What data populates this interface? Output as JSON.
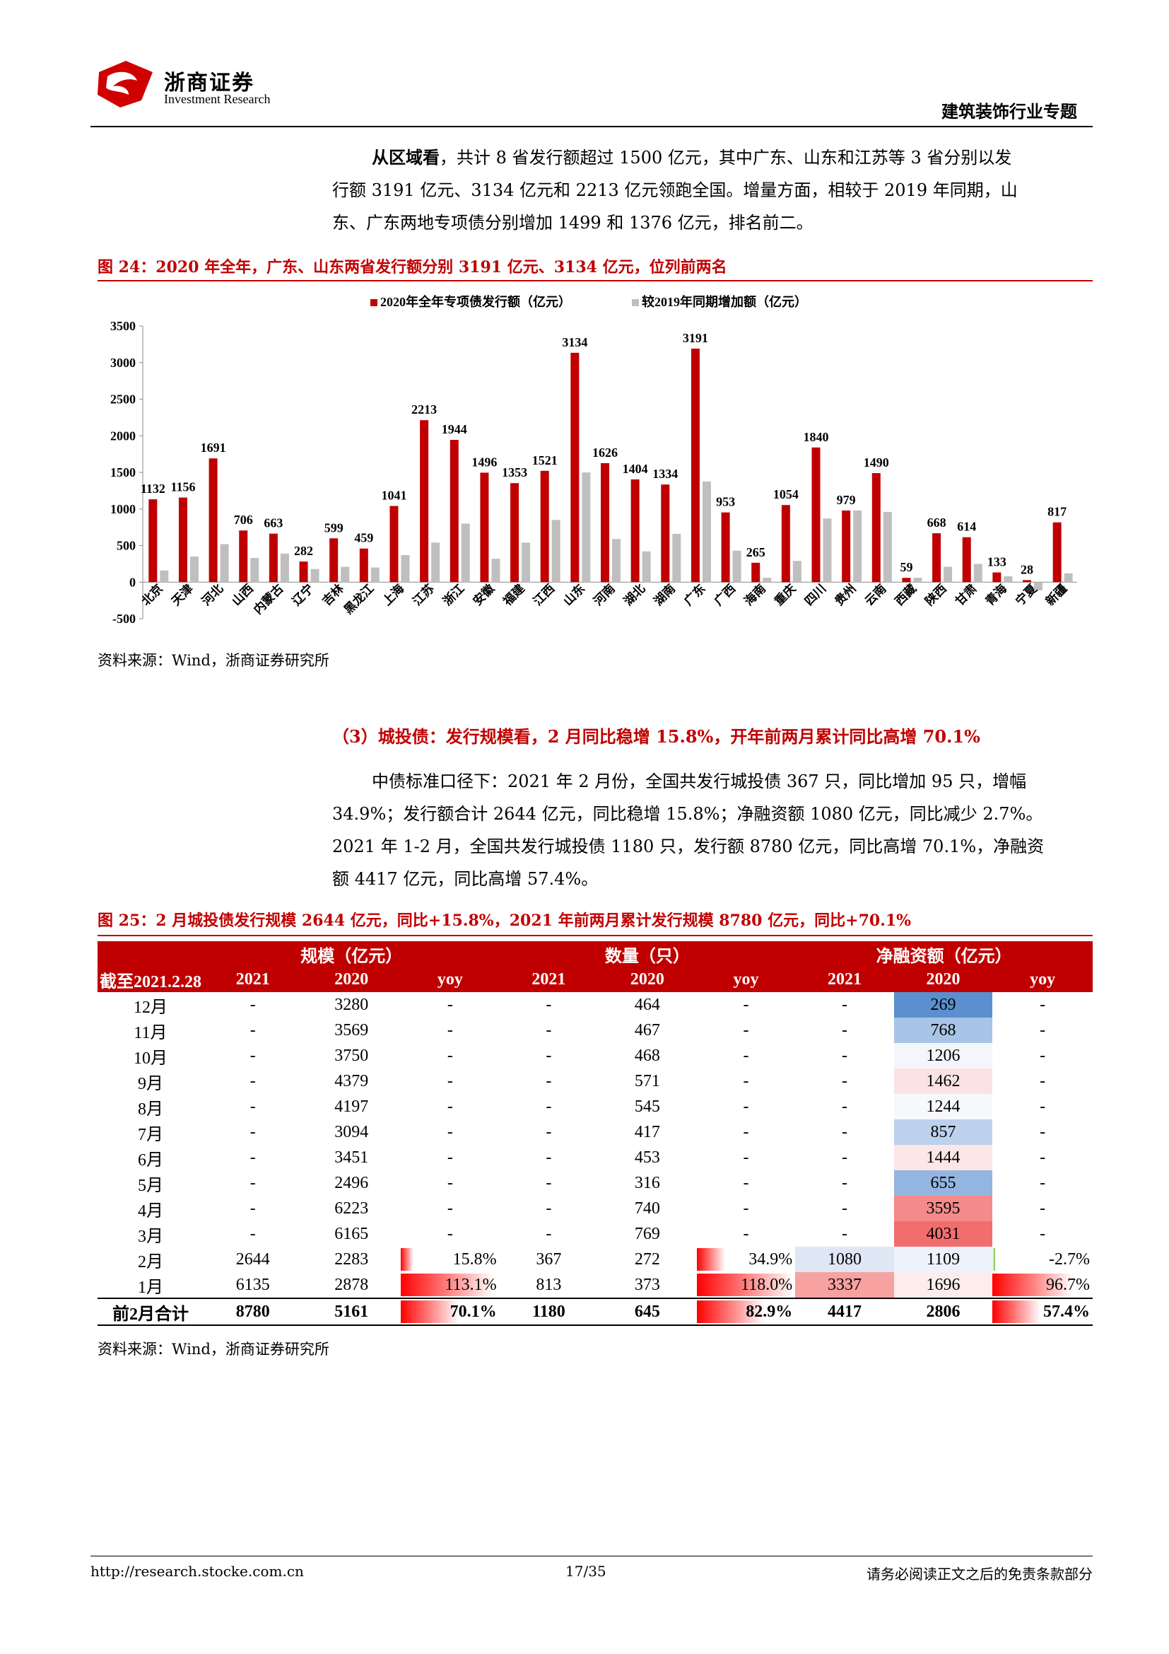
{
  "header": {
    "brand_cn": "浙商证券",
    "brand_en": "Investment Research",
    "section": "建筑装饰行业专题"
  },
  "para1": {
    "lead": "从区域看",
    "line1": "，共计 8 省发行额超过 1500 亿元，其中广东、山东和江苏等 3 省分别以发",
    "line2": "行额 3191 亿元、3134 亿元和 2213 亿元领跑全国。增量方面，相较于 2019 年同期，山",
    "line3": "东、广东两地专项债分别增加 1499 和 1376 亿元，排名前二。"
  },
  "fig24": {
    "title": "图 24：2020 年全年，广东、山东两省发行额分别 3191 亿元、3134 亿元，位列前两名",
    "source": "资料来源：Wind，浙商证券研究所"
  },
  "chart_data": {
    "type": "bar",
    "categories": [
      "北京",
      "天津",
      "河北",
      "山西",
      "内蒙古",
      "辽宁",
      "吉林",
      "黑龙江",
      "上海",
      "江苏",
      "浙江",
      "安徽",
      "福建",
      "江西",
      "山东",
      "河南",
      "湖北",
      "湖南",
      "广东",
      "广西",
      "海南",
      "重庆",
      "四川",
      "贵州",
      "云南",
      "西藏",
      "陕西",
      "甘肃",
      "青海",
      "宁夏",
      "新疆"
    ],
    "series": [
      {
        "name": "2020年全年专项债发行额（亿元）",
        "color": "#c00000",
        "values": [
          1132,
          1156,
          1691,
          706,
          663,
          282,
          599,
          459,
          1041,
          2213,
          1944,
          1496,
          1353,
          1521,
          3134,
          1626,
          1404,
          1334,
          3191,
          953,
          265,
          1054,
          1840,
          979,
          1490,
          59,
          668,
          614,
          133,
          28,
          817
        ]
      },
      {
        "name": "较2019年同期增加额（亿元）",
        "color": "#bfbfbf",
        "values": [
          160,
          350,
          520,
          330,
          390,
          180,
          210,
          200,
          370,
          540,
          800,
          320,
          540,
          850,
          1499,
          590,
          420,
          660,
          1376,
          430,
          60,
          290,
          870,
          980,
          960,
          60,
          210,
          250,
          80,
          -110,
          120
        ]
      }
    ],
    "ylim": [
      -500,
      3500
    ],
    "yticks": [
      "-500",
      "0",
      "500",
      "1000",
      "1500",
      "2000",
      "2500",
      "3000",
      "3500"
    ],
    "legend": "top-center",
    "grid": false
  },
  "sub_heading": "（3）城投债：发行规模看，2 月同比稳增 15.8%，开年前两月累计同比高增 70.1%",
  "para2": {
    "line1": "中债标准口径下：2021 年 2 月份，全国共发行城投债 367 只，同比增加 95 只，增幅",
    "line2": "34.9%；发行额合计 2644 亿元，同比稳增 15.8%；净融资额 1080 亿元，同比减少 2.7%。",
    "line3": "2021 年 1-2 月，全国共发行城投债 1180 只，发行额 8780 亿元，同比高增 70.1%，净融资",
    "line4": "额 4417 亿元，同比高增 57.4%。"
  },
  "fig25": {
    "title": "图 25：2 月城投债发行规模 2644 亿元，同比+15.8%，2021 年前两月累计发行规模 8780 亿元，同比+70.1%",
    "source": "资料来源：Wind，浙商证券研究所"
  },
  "table": {
    "group_headers": [
      "规模（亿元）",
      "数量（只）",
      "净融资额（亿元）"
    ],
    "corner": "截至2021.2.28",
    "sub_headers": [
      "2021",
      "2020",
      "yoy",
      "2021",
      "2020",
      "yoy",
      "2021",
      "2020",
      "yoy"
    ],
    "rows": [
      {
        "label": "12月",
        "cells": [
          "-",
          "3280",
          "-",
          "-",
          "464",
          "-",
          "-",
          "269",
          "-"
        ]
      },
      {
        "label": "11月",
        "cells": [
          "-",
          "3569",
          "-",
          "-",
          "467",
          "-",
          "-",
          "768",
          "-"
        ]
      },
      {
        "label": "10月",
        "cells": [
          "-",
          "3750",
          "-",
          "-",
          "468",
          "-",
          "-",
          "1206",
          "-"
        ]
      },
      {
        "label": "9月",
        "cells": [
          "-",
          "4379",
          "-",
          "-",
          "571",
          "-",
          "-",
          "1462",
          "-"
        ]
      },
      {
        "label": "8月",
        "cells": [
          "-",
          "4197",
          "-",
          "-",
          "545",
          "-",
          "-",
          "1244",
          "-"
        ]
      },
      {
        "label": "7月",
        "cells": [
          "-",
          "3094",
          "-",
          "-",
          "417",
          "-",
          "-",
          "857",
          "-"
        ]
      },
      {
        "label": "6月",
        "cells": [
          "-",
          "3451",
          "-",
          "-",
          "453",
          "-",
          "-",
          "1444",
          "-"
        ]
      },
      {
        "label": "5月",
        "cells": [
          "-",
          "2496",
          "-",
          "-",
          "316",
          "-",
          "-",
          "655",
          "-"
        ]
      },
      {
        "label": "4月",
        "cells": [
          "-",
          "6223",
          "-",
          "-",
          "740",
          "-",
          "-",
          "3595",
          "-"
        ]
      },
      {
        "label": "3月",
        "cells": [
          "-",
          "6165",
          "-",
          "-",
          "769",
          "-",
          "-",
          "4031",
          "-"
        ]
      },
      {
        "label": "2月",
        "cells": [
          "2644",
          "2283",
          "15.8%",
          "367",
          "272",
          "34.9%",
          "1080",
          "1109",
          "-2.7%"
        ]
      },
      {
        "label": "1月",
        "cells": [
          "6135",
          "2878",
          "113.1%",
          "813",
          "373",
          "118.0%",
          "3337",
          "1696",
          "96.7%"
        ]
      }
    ],
    "total": {
      "label": "前2月合计",
      "cells": [
        "8780",
        "5161",
        "70.1%",
        "1180",
        "645",
        "82.9%",
        "4417",
        "2806",
        "57.4%"
      ]
    },
    "net2020_colors": {
      "269": "#5b8fd0",
      "768": "#a8c4e6",
      "1206": "#f4f6fb",
      "1462": "#fbe3e3",
      "1244": "#f6f8fc",
      "857": "#bcd1ec",
      "1444": "#fce6e6",
      "655": "#93b5df",
      "3595": "#f58a8a",
      "4031": "#f26e6e",
      "1109": "#eef2fa",
      "1696": "#fdecec",
      "2806": "#ffffff"
    },
    "net2021_colors": {
      "1080": "#dfe6f4",
      "3337": "#f7a1a1",
      "4417": "#ffffff"
    }
  },
  "footer": {
    "url": "http://research.stocke.com.cn",
    "page": "17/35",
    "disclaimer": "请务必阅读正文之后的免责条款部分"
  }
}
